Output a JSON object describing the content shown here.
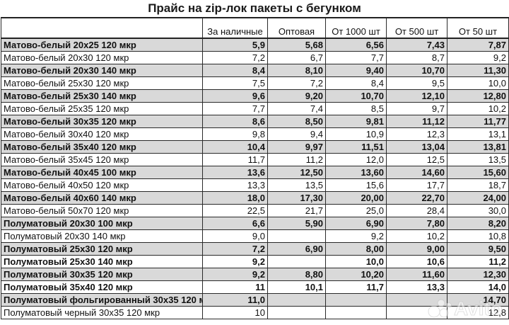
{
  "title": "Прайс на zip-лок пакеты с бегунком",
  "table": {
    "headers": [
      "",
      "За наличные",
      "Оптовая",
      "От 1000 шт",
      "От 500 шт",
      "От 50 шт"
    ],
    "rows": [
      {
        "name": "Матово-белый 20x25 120 мкр",
        "bold": true,
        "shaded": true,
        "values": [
          "5,9",
          "5,68",
          "6,56",
          "7,43",
          "7,87"
        ]
      },
      {
        "name": "Матово-белый 20x30 120 мкр",
        "bold": false,
        "shaded": false,
        "values": [
          "7,2",
          "6,7",
          "7,7",
          "8,7",
          "9,2"
        ]
      },
      {
        "name": "Матово-белый 20x30 140 мкр",
        "bold": true,
        "shaded": true,
        "values": [
          "8,4",
          "8,10",
          "9,40",
          "10,70",
          "11,30"
        ]
      },
      {
        "name": "Матово-белый 25x30 120 мкр",
        "bold": false,
        "shaded": false,
        "values": [
          "7,5",
          "7,2",
          "8,4",
          "9,5",
          "10,0"
        ]
      },
      {
        "name": "Матово-белый 25x30 140 мкр",
        "bold": true,
        "shaded": true,
        "values": [
          "9,6",
          "9,20",
          "10,70",
          "12,10",
          "12,80"
        ]
      },
      {
        "name": "Матово-белый 25x35 120 мкр",
        "bold": false,
        "shaded": false,
        "values": [
          "7,7",
          "7,4",
          "8,5",
          "9,7",
          "10,2"
        ]
      },
      {
        "name": "Матово-белый 30x35 120 мкр",
        "bold": true,
        "shaded": true,
        "values": [
          "8,6",
          "8,50",
          "9,81",
          "11,12",
          "11,77"
        ]
      },
      {
        "name": "Матово-белый 30x40 120 мкр",
        "bold": false,
        "shaded": false,
        "values": [
          "9,8",
          "9,4",
          "10,9",
          "12,3",
          "13,1"
        ]
      },
      {
        "name": "Матово-белый 35x40 120 мкр",
        "bold": true,
        "shaded": true,
        "values": [
          "10,4",
          "9,97",
          "11,51",
          "13,04",
          "13,81"
        ]
      },
      {
        "name": "Матово-белый 35x45 120 мкр",
        "bold": false,
        "shaded": false,
        "values": [
          "11,7",
          "11,2",
          "12,0",
          "12,5",
          "13,5"
        ]
      },
      {
        "name": "Матово-белый 40x45 100 мкр",
        "bold": true,
        "shaded": true,
        "values": [
          "13,6",
          "12,50",
          "13,60",
          "14,60",
          "15,60"
        ]
      },
      {
        "name": "Матово-белый 40x50 120 мкр",
        "bold": false,
        "shaded": false,
        "values": [
          "13,3",
          "13,5",
          "15,6",
          "17,7",
          "18,7"
        ]
      },
      {
        "name": "Матово-белый 40x60 140 мкр",
        "bold": true,
        "shaded": true,
        "values": [
          "18,0",
          "17,30",
          "20,00",
          "22,70",
          "24,00"
        ]
      },
      {
        "name": "Матово-белый 50x70 120 мкр",
        "bold": false,
        "shaded": false,
        "values": [
          "22,5",
          "21,7",
          "25,0",
          "28,4",
          "30,0"
        ]
      },
      {
        "name": "Полуматовый 20x30 100 мкр",
        "bold": true,
        "shaded": true,
        "values": [
          "6,6",
          "5,90",
          "6,90",
          "7,80",
          "8,20"
        ]
      },
      {
        "name": "Полуматовый 20x30 140 мкр",
        "bold": false,
        "shaded": false,
        "values": [
          "9,0",
          "",
          "9,2",
          "10,2",
          "10,8"
        ]
      },
      {
        "name": "Полуматовый 25x30 120 мкр",
        "bold": true,
        "shaded": true,
        "values": [
          "7,2",
          "6,90",
          "8,00",
          "9,00",
          "9,50"
        ]
      },
      {
        "name": "Полуматовый 25x30 140 мкр",
        "bold": true,
        "shaded": false,
        "values": [
          "9,2",
          "",
          "10,0",
          "10,6",
          "11,2"
        ]
      },
      {
        "name": "Полуматовый 30x35 120 мкр",
        "bold": true,
        "shaded": true,
        "values": [
          "9,2",
          "8,80",
          "10,20",
          "11,60",
          "12,30"
        ]
      },
      {
        "name": "Полуматовый 35x40 120 мкр",
        "bold": true,
        "shaded": false,
        "values": [
          "11",
          "10,1",
          "11,7",
          "13,3",
          "14,0"
        ]
      },
      {
        "name": "Полуматовый фольгированный 30x35 120 мкр",
        "bold": true,
        "shaded": true,
        "values": [
          "11,0",
          "",
          "",
          "",
          "14,70"
        ]
      },
      {
        "name": "Полуматовый черный 30x35 120 мкр",
        "bold": false,
        "shaded": false,
        "values": [
          "10",
          "",
          "",
          "",
          "12,8"
        ]
      }
    ]
  },
  "watermark": {
    "text": "Avito",
    "icon": "avito-logo-icon"
  },
  "colors": {
    "shaded_row": "#d9d9d9",
    "border": "#2a2a2a",
    "background": "#ffffff"
  }
}
